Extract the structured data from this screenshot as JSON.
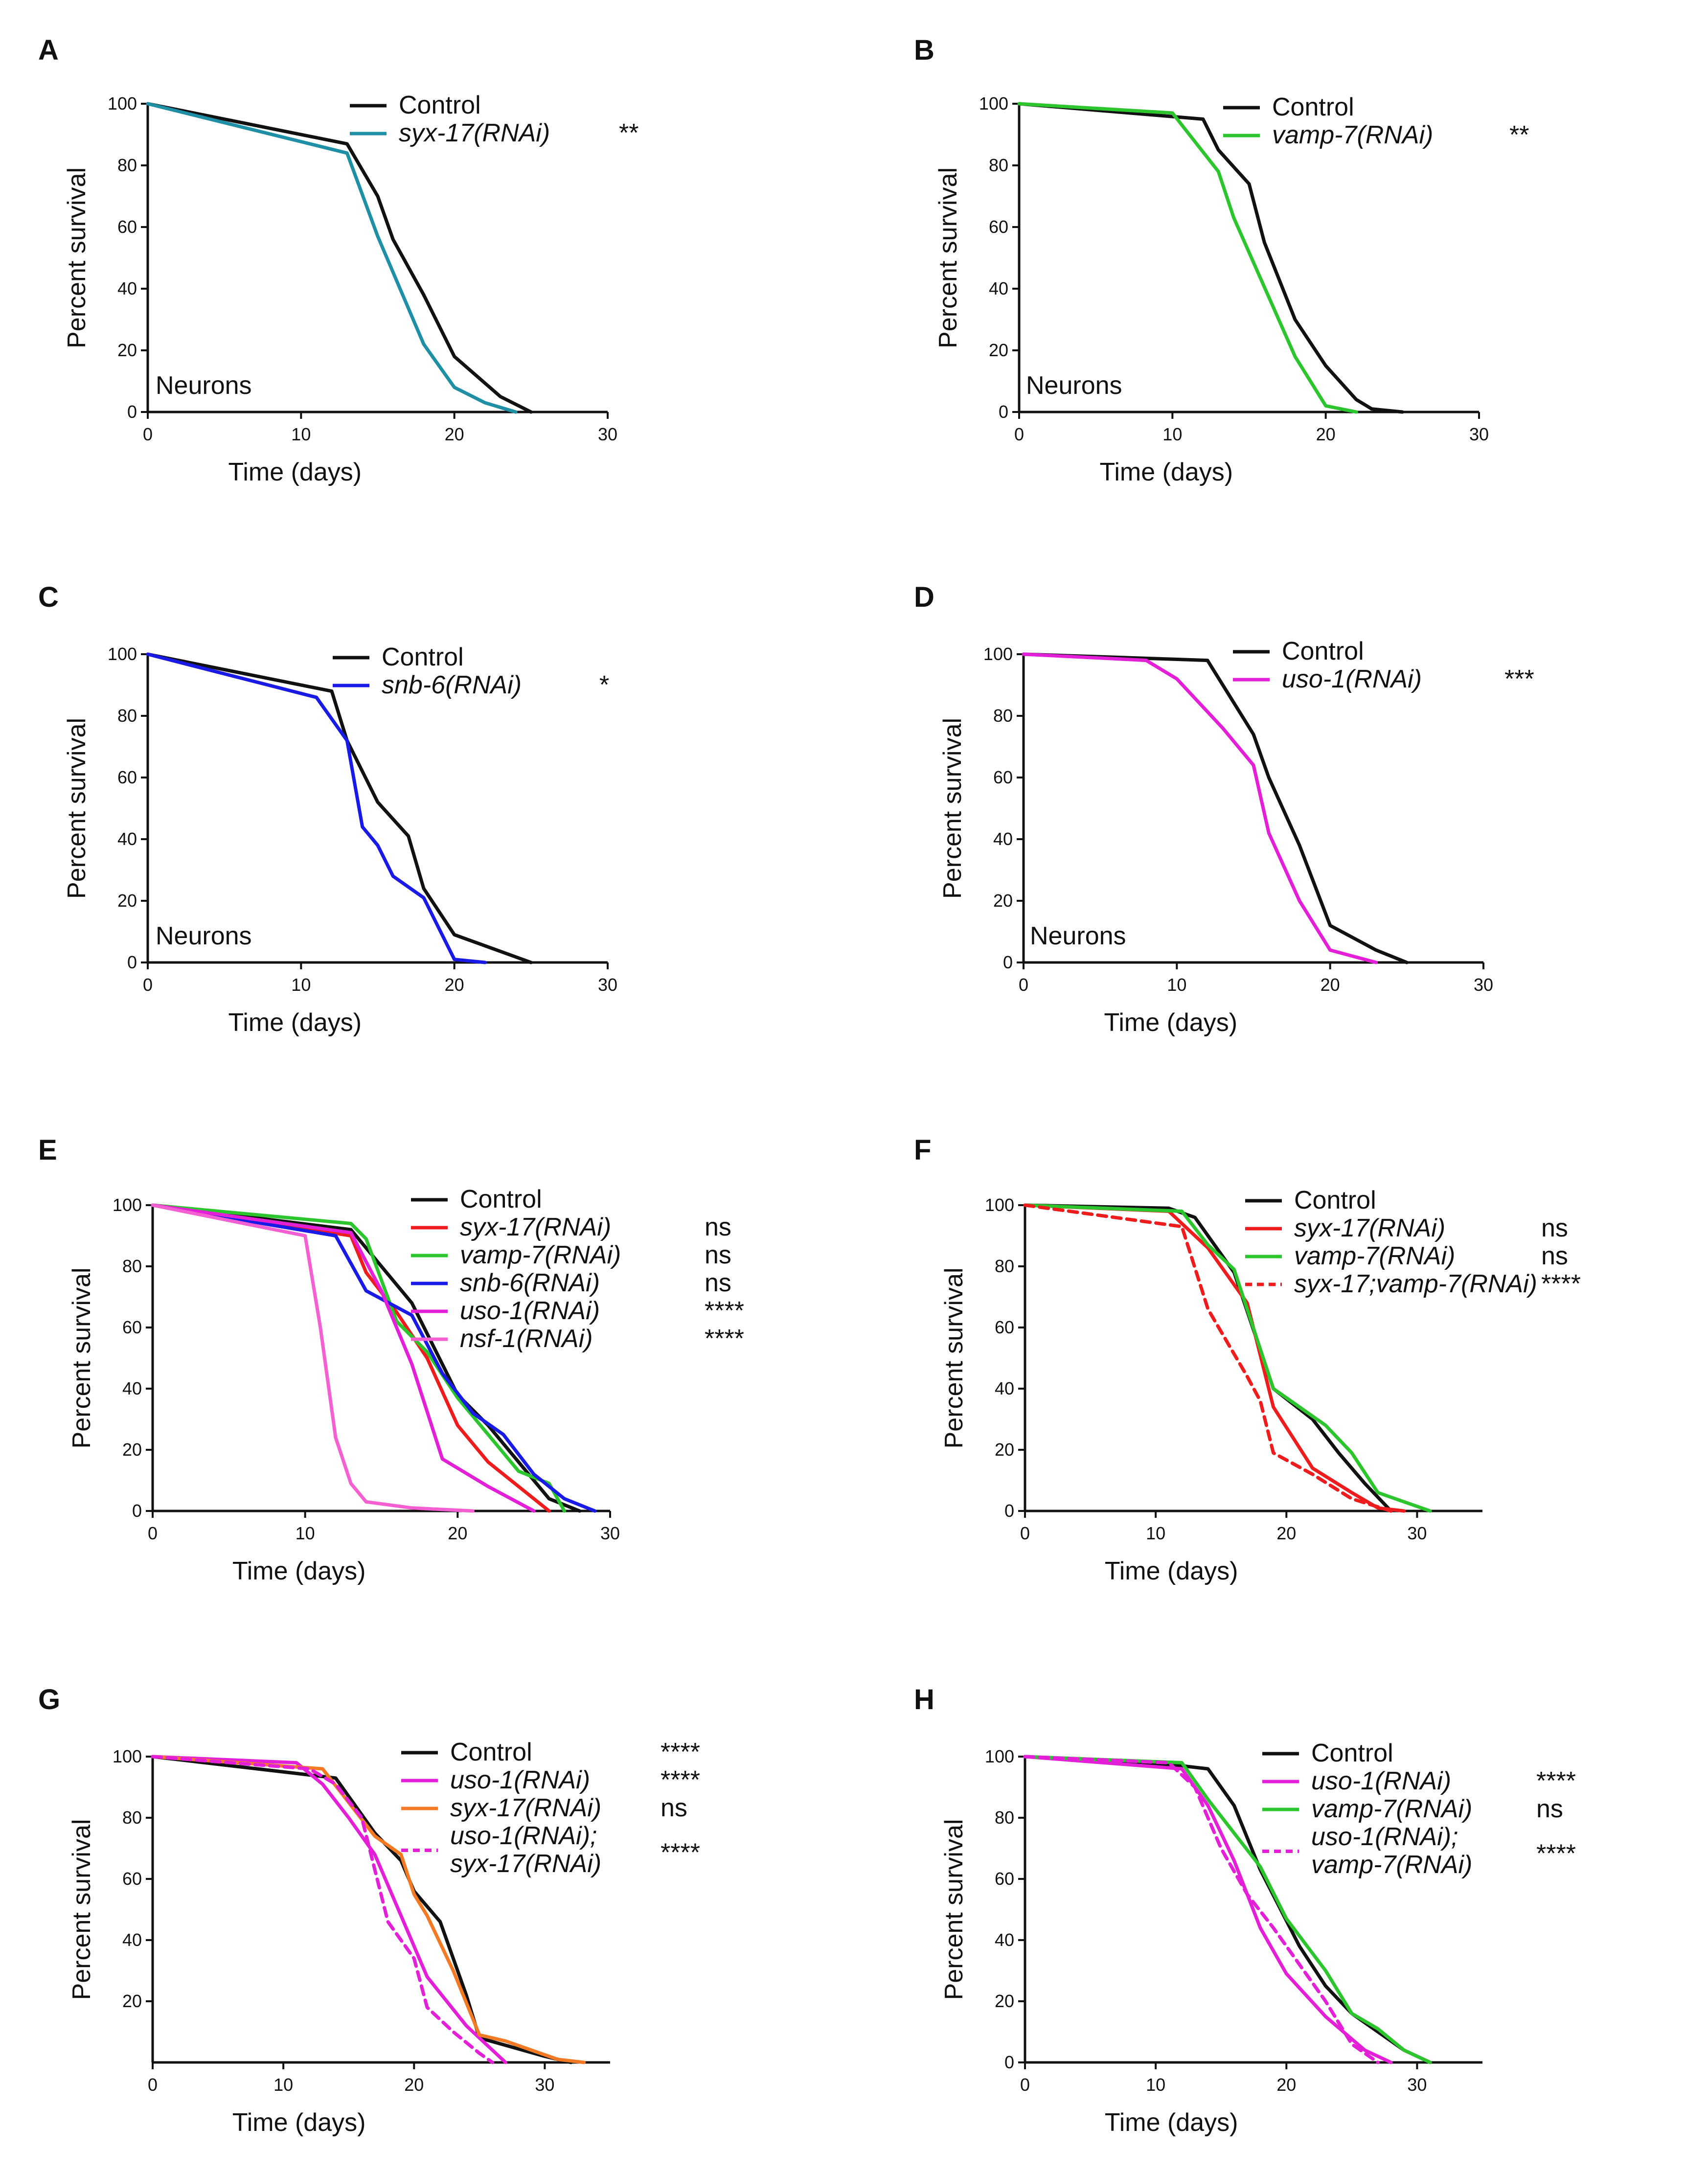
{
  "chart_data": [
    {
      "panel": "A",
      "type": "line",
      "xlabel": "Time (days)",
      "ylabel": "Percent survival",
      "xlim": [
        0,
        30
      ],
      "ylim": [
        0,
        100
      ],
      "xticks": [
        0,
        10,
        20,
        30
      ],
      "yticks": [
        0,
        20,
        40,
        60,
        80,
        100
      ],
      "annotation": "Neurons",
      "series": [
        {
          "name": "Control",
          "stats": "",
          "color": "#111111",
          "dashed": false,
          "x": [
            0,
            13,
            15,
            16,
            18,
            20,
            23,
            25
          ],
          "y": [
            100,
            87,
            70,
            56,
            38,
            18,
            5,
            0
          ]
        },
        {
          "name": "syx-17(RNAi)",
          "stats": "**",
          "color": "#1f8fa6",
          "dashed": false,
          "x": [
            0,
            13,
            15,
            18,
            20,
            22,
            24
          ],
          "y": [
            100,
            84,
            57,
            22,
            8,
            3,
            0
          ]
        }
      ]
    },
    {
      "panel": "B",
      "type": "line",
      "xlabel": "Time (days)",
      "ylabel": "Percent survival",
      "xlim": [
        0,
        30
      ],
      "ylim": [
        0,
        100
      ],
      "xticks": [
        0,
        10,
        20,
        30
      ],
      "yticks": [
        0,
        20,
        40,
        60,
        80,
        100
      ],
      "annotation": "Neurons",
      "series": [
        {
          "name": "Control",
          "stats": "",
          "color": "#111111",
          "dashed": false,
          "x": [
            0,
            12,
            13,
            15,
            16,
            18,
            20,
            22,
            23,
            25
          ],
          "y": [
            100,
            95,
            85,
            74,
            55,
            30,
            15,
            4,
            1,
            0
          ]
        },
        {
          "name": "vamp-7(RNAi)",
          "stats": "**",
          "color": "#2dc52d",
          "dashed": false,
          "x": [
            0,
            10,
            13,
            14,
            18,
            20,
            22
          ],
          "y": [
            100,
            97,
            78,
            63,
            18,
            2,
            0
          ]
        }
      ]
    },
    {
      "panel": "C",
      "type": "line",
      "xlabel": "Time (days)",
      "ylabel": "Percent survival",
      "xlim": [
        0,
        30
      ],
      "ylim": [
        0,
        100
      ],
      "xticks": [
        0,
        10,
        20,
        30
      ],
      "yticks": [
        0,
        20,
        40,
        60,
        80,
        100
      ],
      "annotation": "Neurons",
      "series": [
        {
          "name": "Control",
          "stats": "",
          "color": "#111111",
          "dashed": false,
          "x": [
            0,
            12,
            13,
            15,
            17,
            18,
            20,
            25
          ],
          "y": [
            100,
            88,
            72,
            52,
            41,
            24,
            9,
            0
          ]
        },
        {
          "name": "snb-6(RNAi)",
          "stats": "*",
          "color": "#1a1ae6",
          "dashed": false,
          "x": [
            0,
            11,
            13,
            14,
            15,
            16,
            18,
            20,
            22
          ],
          "y": [
            100,
            86,
            72,
            44,
            38,
            28,
            21,
            1,
            0
          ]
        }
      ]
    },
    {
      "panel": "D",
      "type": "line",
      "xlabel": "Time (days)",
      "ylabel": "Percent survival",
      "xlim": [
        0,
        30
      ],
      "ylim": [
        0,
        100
      ],
      "xticks": [
        0,
        10,
        20,
        30
      ],
      "yticks": [
        0,
        20,
        40,
        60,
        80,
        100
      ],
      "annotation": "Neurons",
      "series": [
        {
          "name": "Control",
          "stats": "",
          "color": "#111111",
          "dashed": false,
          "x": [
            0,
            12,
            13,
            15,
            16,
            18,
            20,
            23,
            25
          ],
          "y": [
            100,
            98,
            90,
            74,
            60,
            38,
            12,
            4,
            0
          ]
        },
        {
          "name": "uso-1(RNAi)",
          "stats": "***",
          "color": "#e41fd8",
          "dashed": false,
          "x": [
            0,
            8,
            10,
            13,
            15,
            16,
            18,
            20,
            23
          ],
          "y": [
            100,
            98,
            92,
            76,
            64,
            42,
            20,
            4,
            0
          ]
        }
      ]
    },
    {
      "panel": "E",
      "type": "line",
      "xlabel": "Time (days)",
      "ylabel": "Percent survival",
      "xlim": [
        0,
        30
      ],
      "ylim": [
        0,
        100
      ],
      "xticks": [
        0,
        10,
        20,
        30
      ],
      "yticks": [
        0,
        20,
        40,
        60,
        80,
        100
      ],
      "annotation": "",
      "series": [
        {
          "name": "Control",
          "stats": "",
          "color": "#111111",
          "dashed": false,
          "x": [
            0,
            13,
            15,
            17,
            18,
            20,
            22,
            24,
            26,
            28
          ],
          "y": [
            100,
            92,
            80,
            68,
            58,
            38,
            28,
            16,
            4,
            0
          ]
        },
        {
          "name": "syx-17(RNAi)",
          "stats": "ns",
          "color": "#ee1c1c",
          "dashed": false,
          "x": [
            0,
            13,
            14,
            16,
            18,
            20,
            22,
            24,
            26
          ],
          "y": [
            100,
            90,
            78,
            65,
            50,
            28,
            16,
            8,
            0
          ]
        },
        {
          "name": "vamp-7(RNAi)",
          "stats": "ns",
          "color": "#2dc52d",
          "dashed": false,
          "x": [
            0,
            13,
            14,
            16,
            18,
            20,
            22,
            24,
            26,
            27
          ],
          "y": [
            100,
            94,
            89,
            62,
            52,
            37,
            25,
            13,
            9,
            0
          ]
        },
        {
          "name": "snb-6(RNAi)",
          "stats": "ns",
          "color": "#1a1ae6",
          "dashed": false,
          "x": [
            0,
            12,
            14,
            17,
            19,
            21,
            23,
            25,
            27,
            29
          ],
          "y": [
            100,
            90,
            72,
            64,
            45,
            32,
            25,
            12,
            4,
            0
          ]
        },
        {
          "name": "uso-1(RNAi)",
          "stats": "****",
          "color": "#e41fd8",
          "dashed": false,
          "x": [
            0,
            13,
            15,
            17,
            19,
            22,
            25
          ],
          "y": [
            100,
            91,
            72,
            48,
            17,
            8,
            0
          ]
        },
        {
          "name": "nsf-1(RNAi)",
          "stats": "****",
          "color": "#f45fd1",
          "dashed": false,
          "x": [
            0,
            10,
            11,
            12,
            13,
            14,
            17,
            21
          ],
          "y": [
            100,
            90,
            60,
            24,
            9,
            3,
            1,
            0
          ]
        }
      ]
    },
    {
      "panel": "F",
      "type": "line",
      "xlabel": "Time (days)",
      "ylabel": "Percent survival",
      "xlim": [
        0,
        35
      ],
      "ylim": [
        0,
        100
      ],
      "xticks": [
        0,
        10,
        20,
        30
      ],
      "yticks": [
        0,
        20,
        40,
        60,
        80,
        100
      ],
      "annotation": "",
      "series": [
        {
          "name": "Control",
          "stats": "",
          "color": "#111111",
          "dashed": false,
          "x": [
            0,
            11,
            13,
            16,
            19,
            22,
            24,
            26,
            28
          ],
          "y": [
            100,
            99,
            96,
            78,
            40,
            30,
            19,
            9,
            0
          ]
        },
        {
          "name": "syx-17(RNAi)",
          "stats": "ns",
          "color": "#ee1c1c",
          "dashed": false,
          "x": [
            0,
            11,
            14,
            17,
            19,
            22,
            25,
            27,
            29
          ],
          "y": [
            100,
            98,
            86,
            68,
            34,
            14,
            6,
            1,
            0
          ]
        },
        {
          "name": "vamp-7(RNAi)",
          "stats": "ns",
          "color": "#2dc52d",
          "dashed": false,
          "x": [
            0,
            12,
            14,
            16,
            19,
            23,
            25,
            27,
            29,
            31
          ],
          "y": [
            100,
            98,
            87,
            79,
            40,
            28,
            19,
            6,
            3,
            0
          ]
        },
        {
          "name": "syx-17;vamp-7(RNAi)",
          "stats": "****",
          "color": "#ee1c1c",
          "dashed": true,
          "x": [
            0,
            12,
            14,
            17,
            18,
            19,
            22,
            25,
            28
          ],
          "y": [
            100,
            93,
            66,
            44,
            36,
            19,
            12,
            4,
            0
          ]
        }
      ]
    },
    {
      "panel": "G",
      "type": "line",
      "xlabel": "Time (days)",
      "ylabel": "Percent survival",
      "xlim": [
        0,
        35
      ],
      "ylim": [
        0,
        100
      ],
      "xticks": [
        0,
        10,
        20,
        30
      ],
      "yticks": [
        20,
        40,
        60,
        80,
        100
      ],
      "annotation": "",
      "series": [
        {
          "name": "Control",
          "stats": "****",
          "color": "#111111",
          "dashed": false,
          "x": [
            0,
            12,
            14,
            17,
            19,
            20,
            22,
            24,
            25,
            30,
            32
          ],
          "y": [
            100,
            94,
            93,
            75,
            66,
            56,
            46,
            22,
            8,
            2,
            0
          ]
        },
        {
          "name": "uso-1(RNAi)",
          "stats": "****",
          "color": "#e41fd8",
          "dashed": false,
          "x": [
            0,
            11,
            13,
            15,
            17,
            19,
            21,
            24,
            26,
            27
          ],
          "y": [
            100,
            98,
            91,
            80,
            68,
            48,
            28,
            12,
            4,
            0
          ]
        },
        {
          "name": "syx-17(RNAi)",
          "stats": "ns",
          "color": "#f27a24",
          "dashed": false,
          "x": [
            0,
            13,
            15,
            17,
            19,
            20,
            21,
            23,
            25,
            27,
            31,
            33
          ],
          "y": [
            100,
            96,
            85,
            74,
            68,
            55,
            48,
            30,
            9,
            7,
            1,
            0
          ]
        },
        {
          "name": "uso-1(RNAi); syx-17(RNAi)",
          "label_lines": [
            "uso-1(RNAi);",
            "syx-17(RNAi)"
          ],
          "stats": "****",
          "color": "#e41fd8",
          "dashed": true,
          "x": [
            0,
            12,
            14,
            16,
            18,
            19,
            20,
            21,
            23,
            25,
            26
          ],
          "y": [
            100,
            96,
            91,
            80,
            46,
            40,
            34,
            18,
            10,
            3,
            0
          ]
        }
      ]
    },
    {
      "panel": "H",
      "type": "line",
      "xlabel": "Time (days)",
      "ylabel": "Percent survival",
      "xlim": [
        0,
        35
      ],
      "ylim": [
        0,
        100
      ],
      "xticks": [
        0,
        10,
        20,
        30
      ],
      "yticks": [
        0,
        20,
        40,
        60,
        80,
        100
      ],
      "annotation": "",
      "series": [
        {
          "name": "Control",
          "stats": "",
          "color": "#111111",
          "dashed": false,
          "x": [
            0,
            12,
            14,
            16,
            18,
            21,
            23,
            25,
            27,
            29,
            31
          ],
          "y": [
            100,
            97,
            96,
            84,
            63,
            38,
            25,
            16,
            10,
            4,
            0
          ]
        },
        {
          "name": "uso-1(RNAi)",
          "stats": "****",
          "color": "#e41fd8",
          "dashed": false,
          "x": [
            0,
            12,
            14,
            16,
            18,
            20,
            23,
            26,
            28
          ],
          "y": [
            100,
            96,
            84,
            66,
            44,
            29,
            15,
            4,
            0
          ]
        },
        {
          "name": "vamp-7(RNAi)",
          "stats": "ns",
          "color": "#2dc52d",
          "dashed": false,
          "x": [
            0,
            12,
            14,
            16,
            18,
            20,
            23,
            25,
            27,
            29,
            31
          ],
          "y": [
            100,
            98,
            86,
            75,
            64,
            47,
            30,
            16,
            11,
            4,
            0
          ]
        },
        {
          "name": "uso-1(RNAi); vamp-7(RNAi)",
          "label_lines": [
            "uso-1(RNAi);",
            "vamp-7(RNAi)"
          ],
          "stats": "****",
          "color": "#e41fd8",
          "dashed": true,
          "x": [
            0,
            11,
            13,
            15,
            17,
            19,
            21,
            23,
            25,
            27
          ],
          "y": [
            100,
            98,
            90,
            70,
            55,
            44,
            32,
            20,
            6,
            0
          ]
        }
      ]
    }
  ]
}
